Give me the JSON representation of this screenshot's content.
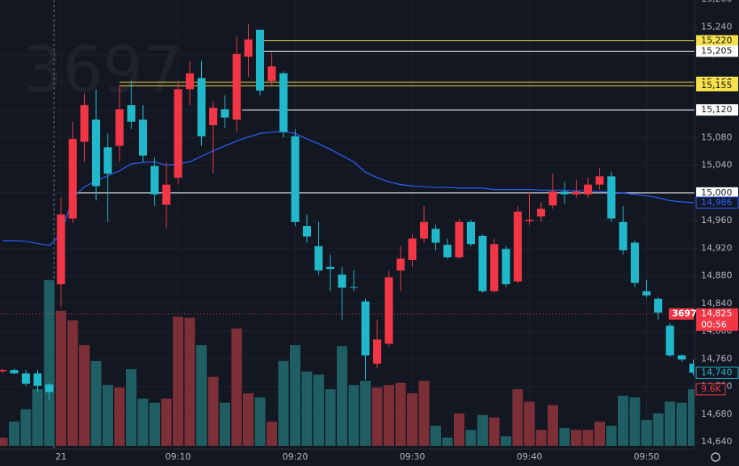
{
  "chart_data": {
    "type": "candlestick",
    "watermark": "3697",
    "categories": [
      null,
      null,
      null,
      null,
      null,
      "21",
      null,
      null,
      null,
      null,
      null,
      null,
      null,
      null,
      null,
      "09:10",
      null,
      null,
      null,
      null,
      null,
      null,
      null,
      null,
      null,
      "09:20",
      null,
      null,
      null,
      null,
      null,
      null,
      null,
      null,
      null,
      "09:30",
      null,
      null,
      null,
      null,
      null,
      null,
      null,
      null,
      null,
      "09:40",
      null,
      null,
      null,
      null,
      null,
      null,
      null,
      null,
      null,
      "09:50",
      null,
      null,
      null,
      null
    ],
    "up_color": "#f23645",
    "down_color": "#22b8cc",
    "candles": {
      "values": [
        [
          14742,
          14746,
          14740,
          14744
        ],
        [
          14744,
          14746,
          14738,
          14739
        ],
        [
          14739,
          14744,
          14721,
          14724
        ],
        [
          14739,
          14744,
          14712,
          14721
        ],
        [
          14723,
          14725,
          14700,
          14712
        ],
        [
          14868,
          14993,
          14835,
          14969
        ],
        [
          14963,
          15103,
          14957,
          15078
        ],
        [
          15074,
          15144,
          15045,
          15127
        ],
        [
          15106,
          15150,
          14989,
          15010
        ],
        [
          15066,
          15086,
          14958,
          15028
        ],
        [
          15068,
          15156,
          15045,
          15121
        ],
        [
          15127,
          15162,
          15092,
          15103
        ],
        [
          15106,
          15127,
          15045,
          15054
        ],
        [
          15039,
          15051,
          14981,
          14998
        ],
        [
          14983,
          15045,
          14949,
          15012
        ],
        [
          15022,
          15162,
          15012,
          15150
        ],
        [
          15150,
          15191,
          15127,
          15173
        ],
        [
          15166,
          15191,
          15068,
          15082
        ],
        [
          15098,
          15133,
          15028,
          15123
        ],
        [
          15121,
          15141,
          15094,
          15109
        ],
        [
          15106,
          15226,
          15088,
          15201
        ],
        [
          15197,
          15244,
          15168,
          15222
        ],
        [
          15236,
          15236,
          15141,
          15148
        ],
        [
          15162,
          15203,
          15156,
          15183
        ],
        [
          15173,
          15176,
          15080,
          15088
        ],
        [
          15082,
          15092,
          14952,
          14958
        ],
        [
          14952,
          14969,
          14928,
          14937
        ],
        [
          14923,
          14958,
          14882,
          14888
        ],
        [
          14893,
          14911,
          14858,
          14890
        ],
        [
          14882,
          14893,
          14817,
          14863
        ],
        [
          14864,
          14888,
          14858,
          14863
        ],
        [
          14843,
          14847,
          14730,
          14765
        ],
        [
          14753,
          14817,
          14747,
          14788
        ],
        [
          14782,
          14888,
          14777,
          14878
        ],
        [
          14888,
          14923,
          14858,
          14905
        ],
        [
          14903,
          14940,
          14893,
          14934
        ],
        [
          14934,
          14981,
          14928,
          14958
        ],
        [
          14948,
          14954,
          14917,
          14928
        ],
        [
          14925,
          14934,
          14905,
          14907
        ],
        [
          14907,
          14963,
          14905,
          14958
        ],
        [
          14958,
          14961,
          14923,
          14926
        ],
        [
          14938,
          14940,
          14856,
          14858
        ],
        [
          14858,
          14934,
          14856,
          14926
        ],
        [
          14919,
          14923,
          14864,
          14868
        ],
        [
          14872,
          14981,
          14870,
          14973
        ],
        [
          14959,
          15001,
          14954,
          14961
        ],
        [
          14966,
          14987,
          14958,
          14977
        ],
        [
          14982,
          15028,
          14977,
          15002
        ],
        [
          15002,
          15016,
          14984,
          14998
        ],
        [
          14998,
          15019,
          14993,
          15002
        ],
        [
          14998,
          15022,
          14993,
          15012
        ],
        [
          15012,
          15036,
          15005,
          15024
        ],
        [
          15024,
          15031,
          14958,
          14963
        ],
        [
          14958,
          14981,
          14911,
          14917
        ],
        [
          14928,
          14931,
          14864,
          14870
        ],
        [
          14858,
          14874,
          14849,
          14852
        ],
        [
          14847,
          14849,
          14817,
          14827
        ],
        [
          14808,
          14812,
          14763,
          14765
        ],
        [
          14765,
          14767,
          14756,
          14759
        ],
        [
          14753,
          14759,
          14736,
          14740
        ]
      ],
      "close_label": "14,740"
    },
    "volume": {
      "values": [
        1.4,
        4.1,
        6.2,
        9.6,
        28.1,
        22.9,
        21.3,
        17.1,
        14.4,
        10.3,
        9.9,
        13.0,
        8.0,
        7.3,
        8.0,
        21.9,
        21.7,
        17.1,
        11.7,
        7.3,
        19.9,
        8.9,
        8.2,
        4.1,
        14.4,
        17.1,
        12.6,
        12.1,
        9.6,
        16.9,
        10.3,
        11.0,
        9.9,
        10.3,
        10.7,
        8.9,
        11.0,
        3.4,
        1.4,
        5.5,
        2.7,
        5.2,
        4.8,
        1.6,
        9.6,
        7.5,
        2.7,
        6.9,
        3.0,
        2.7,
        2.7,
        4.1,
        3.4,
        8.5,
        8.2,
        4.4,
        5.5,
        7.5,
        7.3,
        9.6
      ],
      "value_labels": [
        null,
        null,
        null,
        null,
        null,
        null,
        null,
        null,
        null,
        null,
        null,
        null,
        null,
        null,
        null,
        null,
        null,
        null,
        null,
        null,
        null,
        null,
        null,
        null,
        null,
        null,
        null,
        null,
        null,
        null,
        null,
        null,
        null,
        null,
        null,
        null,
        null,
        null,
        null,
        null,
        null,
        null,
        null,
        null,
        null,
        null,
        null,
        null,
        null,
        null,
        null,
        null,
        null,
        null,
        null,
        null,
        null,
        null,
        null,
        "9.6K"
      ],
      "ylim": [
        0,
        40
      ]
    },
    "ma": {
      "color": "#2962ff",
      "values": [
        14931,
        14931,
        14930,
        14927,
        14924,
        14940,
        14993,
        15009,
        15017,
        15025,
        15032,
        15042,
        15044,
        15045,
        15040,
        15042,
        15045,
        15053,
        15061,
        15068,
        15075,
        15081,
        15086,
        15088,
        15089,
        15086,
        15078,
        15071,
        15063,
        15054,
        15045,
        15030,
        15022,
        15016,
        15012,
        15010,
        15009,
        15008,
        15008,
        15007,
        15007,
        15007,
        15005,
        15005,
        15005,
        15005,
        15004,
        15004,
        15004,
        15003,
        15003,
        15002,
        15001,
        15000,
        14998,
        14996,
        14993,
        14989,
        14987,
        14986
      ],
      "value_labels": [
        null,
        null,
        null,
        null,
        null,
        null,
        null,
        null,
        null,
        null,
        null,
        null,
        null,
        null,
        null,
        null,
        null,
        null,
        null,
        null,
        null,
        null,
        null,
        null,
        null,
        null,
        null,
        null,
        null,
        null,
        null,
        null,
        null,
        null,
        null,
        null,
        null,
        null,
        null,
        null,
        null,
        null,
        null,
        null,
        null,
        null,
        null,
        null,
        null,
        null,
        null,
        null,
        null,
        null,
        null,
        null,
        null,
        null,
        null,
        "14,986"
      ]
    },
    "levels": [
      {
        "value": 15220,
        "label": "15,220",
        "color": "#f7e14b"
      },
      {
        "value": 15205,
        "label": "15,205",
        "color": "#ffffff"
      },
      {
        "value": 15160,
        "label": "15,160",
        "color": "#f7e14b"
      },
      {
        "value": 15155,
        "label": "15,155",
        "color": "#f7e14b"
      },
      {
        "value": 15120,
        "label": "15,120",
        "color": "#ffffff"
      },
      {
        "value": 15000,
        "label": "15,000",
        "color": "#ffffff"
      }
    ],
    "last_price": {
      "value": 14825,
      "label": "14,825",
      "symbol": "3697",
      "countdown": "00:56"
    },
    "ylim": [
      14625,
      15279
    ],
    "yticks": [
      {
        "value": 14640,
        "label": "14,640"
      },
      {
        "value": 14680,
        "label": "14,680"
      },
      {
        "value": 14720,
        "label": "14,720"
      },
      {
        "value": 14760,
        "label": "14,760"
      },
      {
        "value": 14800,
        "label": "14,800"
      },
      {
        "value": 14840,
        "label": "14,840"
      },
      {
        "value": 14880,
        "label": "14,880"
      },
      {
        "value": 14920,
        "label": "14,920"
      },
      {
        "value": 14960,
        "label": "14,960"
      },
      {
        "value": 15000,
        "label": "15,000"
      },
      {
        "value": 15040,
        "label": "15,040"
      },
      {
        "value": 15080,
        "label": "15,080"
      },
      {
        "value": 15120,
        "label": "15,120"
      },
      {
        "value": 15160,
        "label": "15,160"
      },
      {
        "value": 15200,
        "label": "15,200"
      },
      {
        "value": 15240,
        "label": "15,240"
      },
      {
        "value": 15280,
        "label": "15,280"
      }
    ],
    "grid": true
  }
}
